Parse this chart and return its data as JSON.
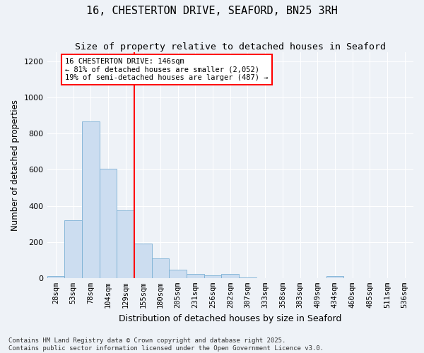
{
  "title": "16, CHESTERTON DRIVE, SEAFORD, BN25 3RH",
  "subtitle": "Size of property relative to detached houses in Seaford",
  "xlabel": "Distribution of detached houses by size in Seaford",
  "ylabel": "Number of detached properties",
  "categories": [
    "28sqm",
    "53sqm",
    "78sqm",
    "104sqm",
    "129sqm",
    "155sqm",
    "180sqm",
    "205sqm",
    "231sqm",
    "256sqm",
    "282sqm",
    "307sqm",
    "333sqm",
    "358sqm",
    "383sqm",
    "409sqm",
    "434sqm",
    "460sqm",
    "485sqm",
    "511sqm",
    "536sqm"
  ],
  "values": [
    12,
    320,
    868,
    605,
    375,
    190,
    107,
    45,
    22,
    15,
    22,
    5,
    0,
    0,
    0,
    0,
    10,
    0,
    0,
    0,
    0
  ],
  "bar_color": "#ccddf0",
  "bar_edge_color": "#7ab0d4",
  "vline_x_index": 4,
  "vline_color": "red",
  "annotation_text": "16 CHESTERTON DRIVE: 146sqm\n← 81% of detached houses are smaller (2,052)\n19% of semi-detached houses are larger (487) →",
  "annotation_box_color": "white",
  "annotation_box_edge_color": "red",
  "ylim": [
    0,
    1250
  ],
  "yticks": [
    0,
    200,
    400,
    600,
    800,
    1000,
    1200
  ],
  "footnote": "Contains HM Land Registry data © Crown copyright and database right 2025.\nContains public sector information licensed under the Open Government Licence v3.0.",
  "background_color": "#eef2f7",
  "grid_color": "white",
  "title_fontsize": 11,
  "subtitle_fontsize": 9.5,
  "ylabel_fontsize": 8.5,
  "xlabel_fontsize": 9,
  "annotation_fontsize": 7.5,
  "footnote_fontsize": 6.5,
  "tick_fontsize": 7.5
}
